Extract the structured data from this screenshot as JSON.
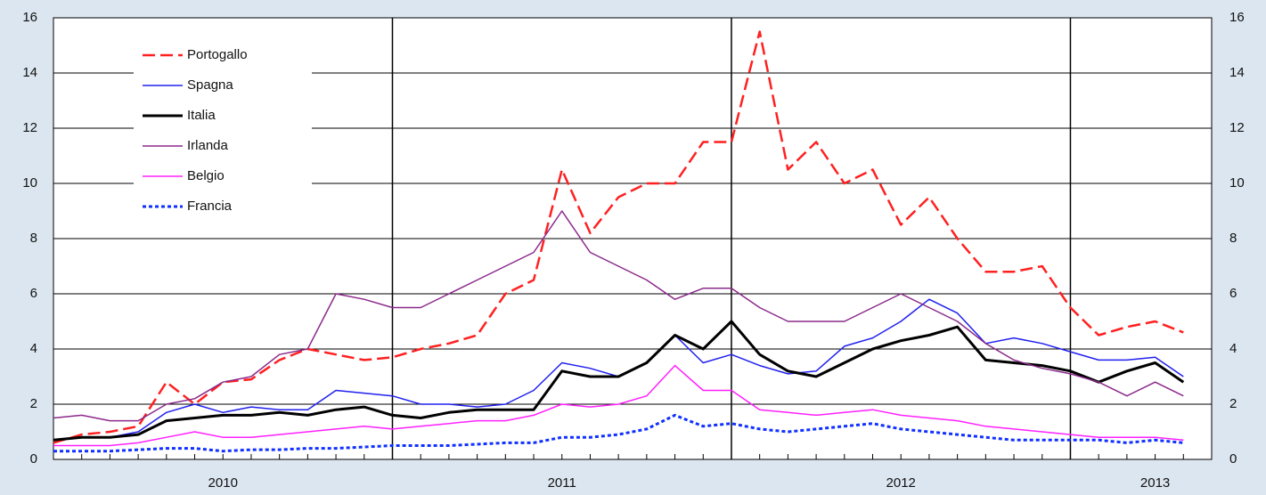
{
  "chart_data": {
    "type": "line",
    "categories": [
      null,
      null,
      null,
      null,
      null,
      null,
      "2010",
      null,
      null,
      null,
      null,
      null,
      null,
      null,
      null,
      null,
      null,
      null,
      "2011",
      null,
      null,
      null,
      null,
      null,
      null,
      null,
      null,
      null,
      null,
      null,
      "2012",
      null,
      null,
      null,
      null,
      null,
      null,
      null,
      null,
      "2013",
      null
    ],
    "ylim": [
      0,
      16
    ],
    "yticks": [
      0,
      2,
      4,
      6,
      8,
      10,
      12,
      14,
      16
    ],
    "grid": true,
    "legend": "upper-left",
    "series": [
      {
        "name": "Portogallo",
        "color": "#ff2020",
        "style": "dashed",
        "width": 2.5,
        "values": [
          0.6,
          0.9,
          1.0,
          1.2,
          2.8,
          2.0,
          2.8,
          2.9,
          3.6,
          4.0,
          3.8,
          3.6,
          3.7,
          4.0,
          4.2,
          4.5,
          6.0,
          6.5,
          10.5,
          8.2,
          9.5,
          10.0,
          10.0,
          11.5,
          11.5,
          15.5,
          10.5,
          11.5,
          10.0,
          10.5,
          8.5,
          9.5,
          8.0,
          6.8,
          6.8,
          7.0,
          5.5,
          4.5,
          4.8,
          5.0,
          4.6
        ]
      },
      {
        "name": "Spagna",
        "color": "#2020ee",
        "style": "solid",
        "width": 1.5,
        "values": [
          0.7,
          0.8,
          0.8,
          1.0,
          1.7,
          2.0,
          1.7,
          1.9,
          1.8,
          1.8,
          2.5,
          2.4,
          2.3,
          2.0,
          2.0,
          1.9,
          2.0,
          2.5,
          3.5,
          3.3,
          3.0,
          3.5,
          4.5,
          3.5,
          3.8,
          3.4,
          3.1,
          3.2,
          4.1,
          4.4,
          5.0,
          5.8,
          5.3,
          4.2,
          4.4,
          4.2,
          3.9,
          3.6,
          3.6,
          3.7,
          3.0
        ]
      },
      {
        "name": "Italia",
        "color": "#000000",
        "style": "solid",
        "width": 3,
        "values": [
          0.7,
          0.8,
          0.8,
          0.9,
          1.4,
          1.5,
          1.6,
          1.6,
          1.7,
          1.6,
          1.8,
          1.9,
          1.6,
          1.5,
          1.7,
          1.8,
          1.8,
          1.8,
          3.2,
          3.0,
          3.0,
          3.5,
          4.5,
          4.0,
          5.0,
          3.8,
          3.2,
          3.0,
          3.5,
          4.0,
          4.3,
          4.5,
          4.8,
          3.6,
          3.5,
          3.4,
          3.2,
          2.8,
          3.2,
          3.5,
          2.8
        ]
      },
      {
        "name": "Irlanda",
        "color": "#8b2a8b",
        "style": "solid",
        "width": 1.5,
        "values": [
          1.5,
          1.6,
          1.4,
          1.4,
          2.0,
          2.2,
          2.8,
          3.0,
          3.8,
          4.0,
          6.0,
          5.8,
          5.5,
          5.5,
          6.0,
          6.5,
          7.0,
          7.5,
          9.0,
          7.5,
          7.0,
          6.5,
          5.8,
          6.2,
          6.2,
          5.5,
          5.0,
          5.0,
          5.0,
          5.5,
          6.0,
          5.5,
          5.0,
          4.2,
          3.6,
          3.3,
          3.1,
          2.8,
          2.3,
          2.8,
          2.3
        ]
      },
      {
        "name": "Belgio",
        "color": "#ff20ff",
        "style": "solid",
        "width": 1.5,
        "values": [
          0.5,
          0.5,
          0.5,
          0.6,
          0.8,
          1.0,
          0.8,
          0.8,
          0.9,
          1.0,
          1.1,
          1.2,
          1.1,
          1.2,
          1.3,
          1.4,
          1.4,
          1.6,
          2.0,
          1.9,
          2.0,
          2.3,
          3.4,
          2.5,
          2.5,
          1.8,
          1.7,
          1.6,
          1.7,
          1.8,
          1.6,
          1.5,
          1.4,
          1.2,
          1.1,
          1.0,
          0.9,
          0.8,
          0.8,
          0.8,
          0.7
        ]
      },
      {
        "name": "Francia",
        "color": "#1030ff",
        "style": "dotted",
        "width": 3,
        "values": [
          0.3,
          0.3,
          0.3,
          0.35,
          0.4,
          0.4,
          0.3,
          0.35,
          0.35,
          0.4,
          0.4,
          0.45,
          0.5,
          0.5,
          0.5,
          0.55,
          0.6,
          0.6,
          0.8,
          0.8,
          0.9,
          1.1,
          1.6,
          1.2,
          1.3,
          1.1,
          1.0,
          1.1,
          1.2,
          1.3,
          1.1,
          1.0,
          0.9,
          0.8,
          0.7,
          0.7,
          0.7,
          0.7,
          0.6,
          0.7,
          0.6
        ]
      }
    ]
  }
}
